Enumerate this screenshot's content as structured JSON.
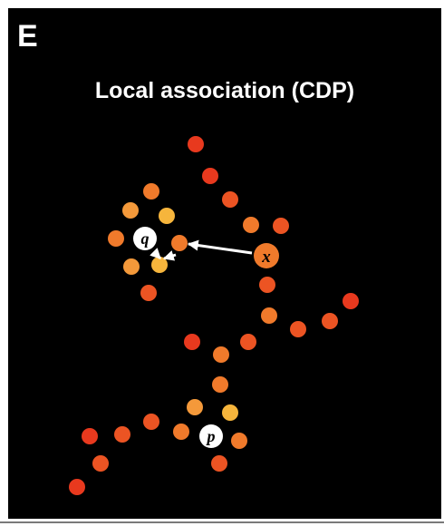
{
  "panel": {
    "letter": "E",
    "title": "Local association (CDP)",
    "background": "#000000"
  },
  "colors": {
    "red": "#e8391e",
    "orange_red": "#ec5423",
    "orange": "#f07a2b",
    "light_orange": "#f4993a",
    "amber": "#f6b53c",
    "label_fill": "#ffffff",
    "label_text": "#000000",
    "arrow": "#ffffff"
  },
  "nodes": {
    "q": {
      "label": "q",
      "kind": "labeled"
    },
    "p": {
      "label": "p",
      "kind": "labeled"
    },
    "x": {
      "label": "x",
      "kind": "highlighted"
    }
  },
  "arrows": [
    {
      "from": "x",
      "to": "neighbor-of-q",
      "label": ""
    },
    {
      "from": "neighbor-of-q",
      "to": "q",
      "label": ""
    },
    {
      "from": "amber-neighbor",
      "to": "q",
      "label": ""
    }
  ]
}
